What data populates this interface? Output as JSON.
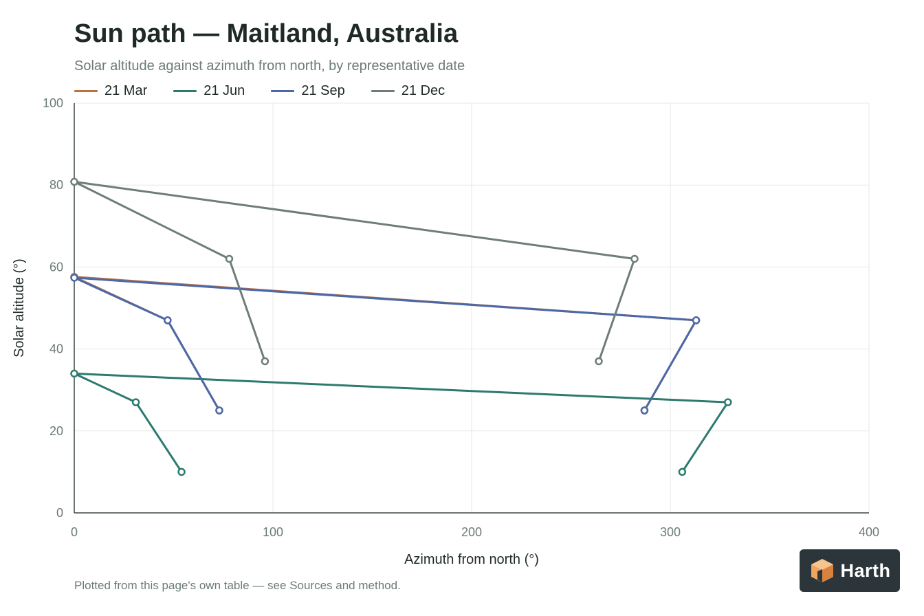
{
  "header": {
    "title": "Sun path — Maitland, Australia",
    "subtitle": "Solar altitude against azimuth from north, by representative date"
  },
  "footnote": "Plotted from this page's own table — see Sources and method.",
  "logo": {
    "text": "Harth",
    "icon": "cube-logo-icon",
    "bg_color": "#2b353a",
    "accent_color": "#f0a55e"
  },
  "chart_data": {
    "type": "line",
    "title": "Sun path — Maitland, Australia",
    "subtitle": "Solar altitude against azimuth from north, by representative date",
    "xlabel": "Azimuth from north (°)",
    "ylabel": "Solar altitude (°)",
    "xlim": [
      0,
      400
    ],
    "ylim": [
      0,
      100
    ],
    "xticks": [
      0,
      100,
      200,
      300,
      400
    ],
    "yticks": [
      0,
      20,
      40,
      60,
      80,
      100
    ],
    "grid": true,
    "legend_position": "top-left",
    "series": [
      {
        "name": "21 Mar",
        "color": "#c0703f",
        "points": [
          [
            73,
            25
          ],
          [
            47,
            47
          ],
          [
            0,
            57.6
          ],
          [
            313,
            47
          ],
          [
            287,
            25
          ]
        ]
      },
      {
        "name": "21 Jun",
        "color": "#2d7a6e",
        "points": [
          [
            54,
            10
          ],
          [
            31,
            27
          ],
          [
            0,
            34
          ],
          [
            329,
            27
          ],
          [
            306,
            10
          ]
        ]
      },
      {
        "name": "21 Sep",
        "color": "#4b68a8",
        "points": [
          [
            73,
            25
          ],
          [
            47,
            47
          ],
          [
            0,
            57.4
          ],
          [
            313,
            47
          ],
          [
            287,
            25
          ]
        ]
      },
      {
        "name": "21 Dec",
        "color": "#6f7d78",
        "points": [
          [
            96,
            37
          ],
          [
            78,
            62
          ],
          [
            0,
            80.8
          ],
          [
            282,
            62
          ],
          [
            264,
            37
          ]
        ]
      }
    ]
  }
}
